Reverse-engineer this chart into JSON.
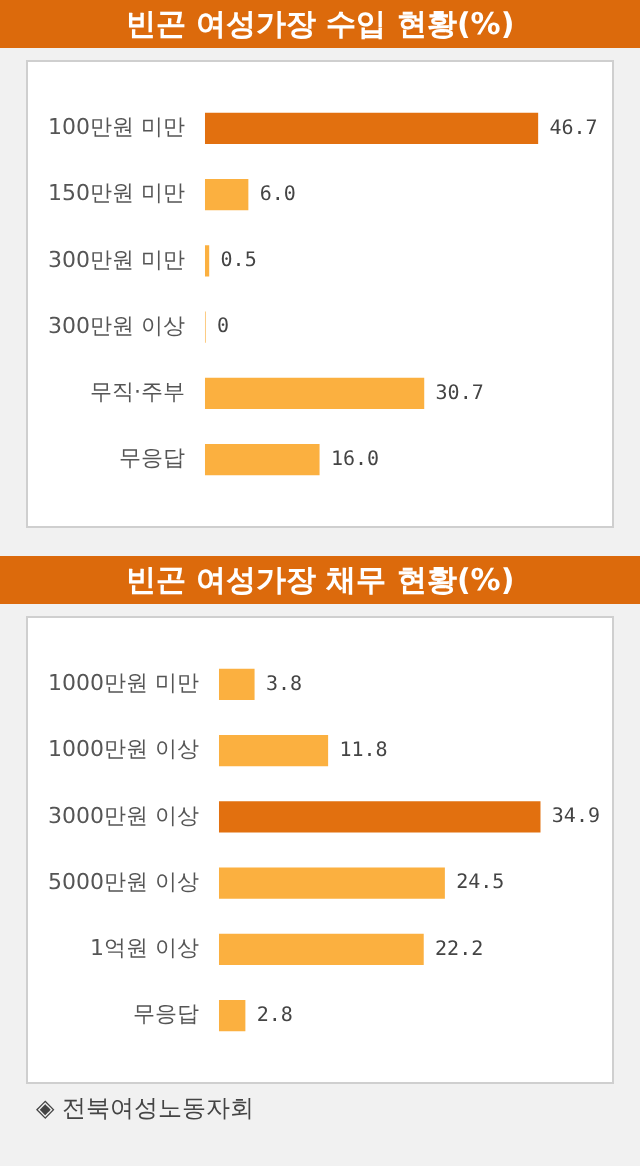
{
  "chart_data": [
    {
      "type": "bar",
      "title": "빈곤 여성가장 수입 현황(%)",
      "orientation": "horizontal",
      "categories": [
        "100만원 미만",
        "150만원 미만",
        "300만원 미만",
        "300만원 이상",
        "무직·주부",
        "무응답"
      ],
      "values": [
        46.7,
        6.0,
        0.5,
        0,
        30.7,
        16.0
      ],
      "value_labels": [
        "46.7",
        "6.0",
        "0.5",
        "0",
        "30.7",
        "16.0"
      ],
      "colors": [
        "#e2700f",
        "#fbb040",
        "#fbb040",
        "#fbb040",
        "#fbb040",
        "#fbb040"
      ],
      "grid": false,
      "legend": false,
      "tick_labels": "y"
    },
    {
      "type": "bar",
      "title": "빈곤 여성가장 채무 현황(%)",
      "orientation": "horizontal",
      "categories": [
        "1000만원 미만",
        "1000만원 이상",
        "3000만원 이상",
        "5000만원 이상",
        "1억원 이상",
        "무응답"
      ],
      "values": [
        3.8,
        11.8,
        34.9,
        24.5,
        22.2,
        2.8
      ],
      "value_labels": [
        "3.8",
        "11.8",
        "34.9",
        "24.5",
        "22.2",
        "2.8"
      ],
      "colors": [
        "#fbb040",
        "#fbb040",
        "#e2700f",
        "#fbb040",
        "#fbb040",
        "#fbb040"
      ],
      "grid": false,
      "legend": false,
      "tick_labels": "y",
      "annotations": [
        "◈ 전북여성노동자회"
      ]
    }
  ]
}
